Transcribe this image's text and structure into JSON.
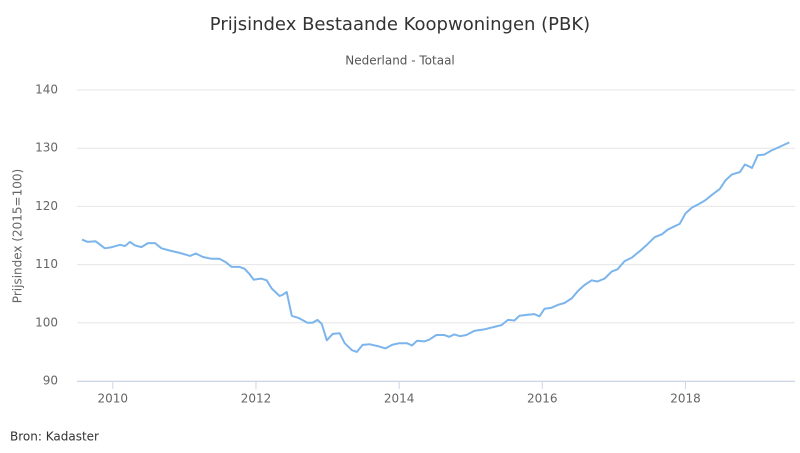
{
  "chart_data": {
    "type": "line",
    "title": "Prijsindex Bestaande Koopwoningen (PBK)",
    "subtitle": "Nederland - Totaal",
    "y_label": "Prijsindex (2015=100)",
    "source": "Bron: Kadaster",
    "xlim": [
      2009.5,
      2019.53
    ],
    "xticks": [
      2010,
      2012,
      2014,
      2016,
      2018
    ],
    "ylim": [
      90,
      140
    ],
    "yticks": [
      90,
      100,
      110,
      120,
      130,
      140
    ],
    "grid": true,
    "series": [
      {
        "name": "Nederland - Totaal",
        "color": "#7cb5ec",
        "x": [
          2009.57,
          2009.65,
          2009.76,
          2009.89,
          2009.99,
          2010.1,
          2010.17,
          2010.24,
          2010.31,
          2010.4,
          2010.49,
          2010.59,
          2010.68,
          2010.8,
          2010.94,
          2011.08,
          2011.16,
          2011.26,
          2011.38,
          2011.49,
          2011.58,
          2011.66,
          2011.77,
          2011.84,
          2011.9,
          2011.97,
          2012.07,
          2012.15,
          2012.22,
          2012.33,
          2012.37,
          2012.43,
          2012.5,
          2012.6,
          2012.72,
          2012.79,
          2012.86,
          2012.92,
          2012.99,
          2013.07,
          2013.17,
          2013.24,
          2013.34,
          2013.41,
          2013.49,
          2013.59,
          2013.7,
          2013.81,
          2013.9,
          2014.0,
          2014.11,
          2014.18,
          2014.25,
          2014.35,
          2014.42,
          2014.52,
          2014.63,
          2014.7,
          2014.77,
          2014.85,
          2014.94,
          2015.05,
          2015.2,
          2015.33,
          2015.43,
          2015.52,
          2015.61,
          2015.68,
          2015.8,
          2015.89,
          2015.96,
          2016.03,
          2016.13,
          2016.22,
          2016.31,
          2016.41,
          2016.5,
          2016.59,
          2016.69,
          2016.77,
          2016.87,
          2016.97,
          2017.05,
          2017.15,
          2017.25,
          2017.36,
          2017.47,
          2017.57,
          2017.67,
          2017.75,
          2017.85,
          2017.92,
          2018.0,
          2018.09,
          2018.17,
          2018.27,
          2018.37,
          2018.48,
          2018.56,
          2018.65,
          2018.76,
          2018.83,
          2018.9,
          2018.93,
          2019.01,
          2019.1,
          2019.2,
          2019.31,
          2019.45
        ],
        "values": [
          114.3,
          113.9,
          114.0,
          112.8,
          113.0,
          113.4,
          113.2,
          113.9,
          113.3,
          113.0,
          113.7,
          113.7,
          112.8,
          112.4,
          112.0,
          111.5,
          111.9,
          111.3,
          111.0,
          111.0,
          110.4,
          109.6,
          109.6,
          109.3,
          108.5,
          107.4,
          107.6,
          107.3,
          105.9,
          104.6,
          104.8,
          105.3,
          101.2,
          100.8,
          100.0,
          100.0,
          100.5,
          99.8,
          97.0,
          98.1,
          98.2,
          96.5,
          95.3,
          95.0,
          96.2,
          96.3,
          96.0,
          95.6,
          96.2,
          96.5,
          96.5,
          96.1,
          96.9,
          96.8,
          97.1,
          97.9,
          97.9,
          97.6,
          98.0,
          97.7,
          97.9,
          98.6,
          98.9,
          99.3,
          99.6,
          100.5,
          100.4,
          101.2,
          101.4,
          101.5,
          101.1,
          102.4,
          102.6,
          103.1,
          103.4,
          104.2,
          105.5,
          106.5,
          107.3,
          107.1,
          107.6,
          108.8,
          109.2,
          110.6,
          111.2,
          112.3,
          113.5,
          114.7,
          115.2,
          116.0,
          116.6,
          117.0,
          118.8,
          119.8,
          120.3,
          121.0,
          122.0,
          123.0,
          124.5,
          125.5,
          125.9,
          127.2,
          126.8,
          126.6,
          128.8,
          128.9,
          129.6,
          130.2,
          131.0
        ]
      }
    ]
  }
}
